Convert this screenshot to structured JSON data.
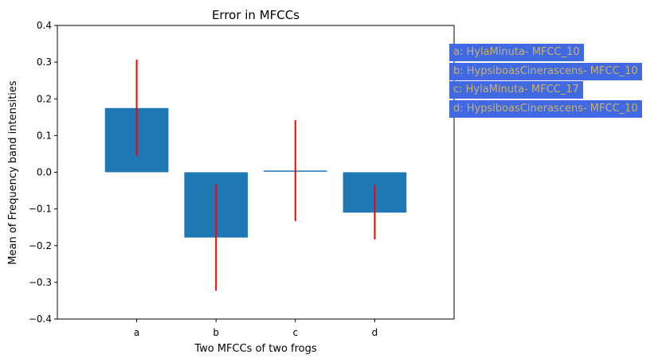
{
  "chart_data": {
    "type": "bar",
    "title": "Error in MFCCs",
    "xlabel": "Two MFCCs of two frogs",
    "ylabel": "Mean of Frequency band intensities",
    "categories": [
      "a",
      "b",
      "c",
      "d"
    ],
    "values": [
      0.175,
      -0.178,
      0.003,
      -0.11
    ],
    "error_bars": [
      {
        "low": 0.045,
        "high": 0.307
      },
      {
        "low": -0.323,
        "high": -0.033
      },
      {
        "low": -0.133,
        "high": 0.142
      },
      {
        "low": -0.183,
        "high": -0.035
      }
    ],
    "ylim": [
      -0.4,
      0.4
    ],
    "yticks": [
      "−0.4",
      "−0.3",
      "−0.2",
      "−0.1",
      "0.0",
      "0.1",
      "0.2",
      "0.3",
      "0.4"
    ],
    "ytick_values": [
      -0.4,
      -0.3,
      -0.2,
      -0.1,
      0.0,
      0.1,
      0.2,
      0.3,
      0.4
    ],
    "grid": false,
    "bar_color": "#1f77b4",
    "error_color": "#ff0000",
    "annotations": [
      "a: HylaMinuta- MFCC_10",
      "b: HypsiboasCinerascens- MFCC_10",
      "c: HylaMinuta- MFCC_17",
      "d: HypsiboasCinerascens- MFCC_10"
    ],
    "annotation_bg": "#4169e1",
    "annotation_text_color": "#c8b26a"
  }
}
